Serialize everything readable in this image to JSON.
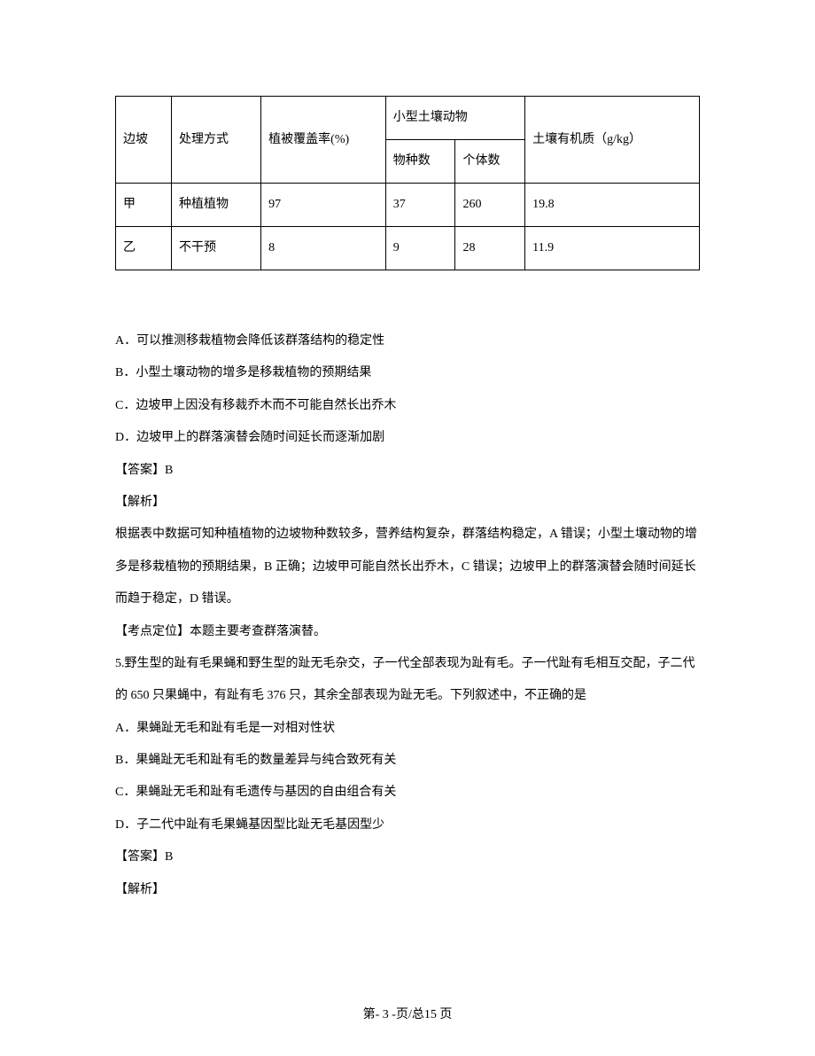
{
  "table": {
    "headers": {
      "slope": "边坡",
      "method": "处理方式",
      "veg": "植被覆盖率(%)",
      "animalGroup": "小型土壤动物",
      "species": "物种数",
      "individuals": "个体数",
      "organic": "土壤有机质（g/kg）"
    },
    "rows": [
      {
        "slope": "甲",
        "method": "种植植物",
        "veg": "97",
        "species": "37",
        "individuals": "260",
        "organic": "19.8"
      },
      {
        "slope": "乙",
        "method": "不干预",
        "veg": "8",
        "species": "9",
        "individuals": "28",
        "organic": "11.9"
      }
    ]
  },
  "body": {
    "optA": "A．可以推测移栽植物会降低该群落结构的稳定性",
    "optB": "B．小型土壤动物的增多是移栽植物的预期结果",
    "optC": "C．边坡甲上因没有移裁乔木而不可能自然长出乔木",
    "optD": "D．边坡甲上的群落演替会随时间延长而逐渐加剧",
    "ans4": "【答案】B",
    "analysisLabel": "【解析】",
    "analysis4": "根据表中数据可知种植植物的边坡物种数较多，营养结构复杂，群落结构稳定，A 错误；小型土壤动物的增多是移栽植物的预期结果，B 正确；边坡甲可能自然长出乔木，C 错误；边坡甲上的群落演替会随时间延长而趋于稳定，D 错误。",
    "kaodian": "【考点定位】本题主要考查群落演替。",
    "q5": "5.野生型的趾有毛果蝇和野生型的趾无毛杂交，子一代全部表现为趾有毛。子一代趾有毛相互交配，子二代的 650 只果蝇中，有趾有毛 376 只，其余全部表现为趾无毛。下列叙述中，不正确的是",
    "q5A": "A．果蝇趾无毛和趾有毛是一对相对性状",
    "q5B": "B．果蝇趾无毛和趾有毛的数量差异与纯合致死有关",
    "q5C": "C．果蝇趾无毛和趾有毛遗传与基因的自由组合有关",
    "q5D": "D．子二代中趾有毛果蝇基因型比趾无毛基因型少",
    "ans5": "【答案】B",
    "analysis5Label": "【解析】"
  },
  "footer": "第- 3 -页/总15 页"
}
